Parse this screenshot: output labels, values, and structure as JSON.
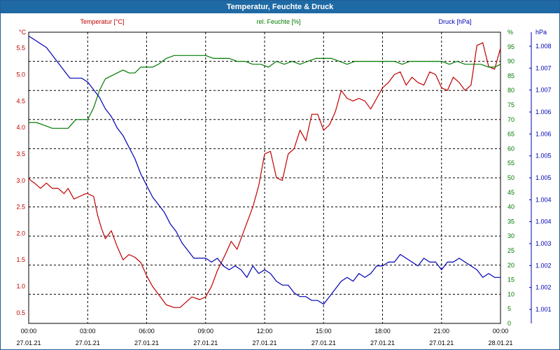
{
  "window": {
    "title": "Temperatur, Feuchte & Druck"
  },
  "colors": {
    "temperature": "#c00000",
    "humidity": "#007a00",
    "pressure": "#0000b4",
    "titlebar": "#1f6aa5"
  },
  "chart_data": {
    "type": "line",
    "title": "Temperatur, Feuchte & Druck",
    "grid": true,
    "x_ticks": [
      {
        "time": "00:00",
        "date": "27.01.21"
      },
      {
        "time": "03:00",
        "date": "27.01.21"
      },
      {
        "time": "06:00",
        "date": "27.01.21"
      },
      {
        "time": "09:00",
        "date": "27.01.21"
      },
      {
        "time": "12:00",
        "date": "27.01.21"
      },
      {
        "time": "15:00",
        "date": "27.01.21"
      },
      {
        "time": "18:00",
        "date": "27.01.21"
      },
      {
        "time": "21:00",
        "date": "27.01.21"
      },
      {
        "time": "00:00",
        "date": "28.01.21"
      }
    ],
    "xlim_hours": [
      0,
      24
    ],
    "axes": {
      "temperature": {
        "unit": "°C",
        "label": "Temperatur [°C]",
        "ylim": [
          0.3,
          5.8
        ],
        "ticks": [
          "0.5",
          "1.0",
          "1.5",
          "2.0",
          "2.5",
          "3.0",
          "3.5",
          "4.0",
          "4.5",
          "5.0",
          "5.5"
        ]
      },
      "humidity": {
        "unit": "%",
        "label": "rel. Feuchte [%]",
        "ylim": [
          0,
          100
        ],
        "ticks": [
          "0",
          "5",
          "10",
          "15",
          "20",
          "25",
          "30",
          "35",
          "40",
          "45",
          "50",
          "55",
          "60",
          "65",
          "70",
          "75",
          "80",
          "85",
          "90",
          "95",
          "%"
        ]
      },
      "pressure": {
        "unit": "hPa",
        "label": "Druck [hPa]",
        "ylim": [
          1000.6,
          1008.2
        ],
        "ticks": [
          "1.001",
          "1.002",
          "1.002",
          "1.003",
          "1.004",
          "1.004",
          "1.005",
          "1.005",
          "1.006",
          "1.006",
          "1.007",
          "1.007",
          "1.008"
        ]
      }
    },
    "series": [
      {
        "name": "Temperatur [°C]",
        "axis": "temperature",
        "x": [
          0,
          0.1,
          0.3,
          0.6,
          0.9,
          1.2,
          1.5,
          1.8,
          2.0,
          2.3,
          2.6,
          2.9,
          3.0,
          3.3,
          3.5,
          3.7,
          3.9,
          4.2,
          4.5,
          4.8,
          5.1,
          5.4,
          5.7,
          6.0,
          6.3,
          6.6,
          7.0,
          7.4,
          7.7,
          8.0,
          8.3,
          8.7,
          9.0,
          9.3,
          9.6,
          10.0,
          10.3,
          10.6,
          11.0,
          11.4,
          11.7,
          12.0,
          12.3,
          12.6,
          12.9,
          13.2,
          13.5,
          13.8,
          14.1,
          14.4,
          14.7,
          15.0,
          15.3,
          15.6,
          15.9,
          16.2,
          16.5,
          16.8,
          17.1,
          17.4,
          17.7,
          18.0,
          18.3,
          18.6,
          18.9,
          19.2,
          19.5,
          19.8,
          20.1,
          20.4,
          20.7,
          21.0,
          21.3,
          21.6,
          21.9,
          22.2,
          22.5,
          22.8,
          23.1,
          23.4,
          23.7,
          24.0
        ],
        "y": [
          3.05,
          3.0,
          2.95,
          2.85,
          2.95,
          2.85,
          2.85,
          2.75,
          2.85,
          2.65,
          2.7,
          2.75,
          2.75,
          2.7,
          2.35,
          2.1,
          1.9,
          2.05,
          1.75,
          1.5,
          1.6,
          1.55,
          1.45,
          1.2,
          1.0,
          0.85,
          0.65,
          0.6,
          0.6,
          0.7,
          0.8,
          0.75,
          0.8,
          1.0,
          1.3,
          1.6,
          1.85,
          1.7,
          2.1,
          2.5,
          2.9,
          3.5,
          3.55,
          3.05,
          3.0,
          3.5,
          3.6,
          3.95,
          3.75,
          4.25,
          4.25,
          3.95,
          4.05,
          4.3,
          4.7,
          4.55,
          4.5,
          4.55,
          4.5,
          4.35,
          4.55,
          4.75,
          4.85,
          5.0,
          5.05,
          4.8,
          4.95,
          4.85,
          4.8,
          5.05,
          5.0,
          4.75,
          4.7,
          4.95,
          4.85,
          4.7,
          4.8,
          5.55,
          5.6,
          5.15,
          5.1,
          5.5
        ]
      },
      {
        "name": "rel. Feuchte [%]",
        "axis": "humidity",
        "x": [
          0,
          0.4,
          0.8,
          1.2,
          1.6,
          2.0,
          2.4,
          2.7,
          3.0,
          3.3,
          3.6,
          3.9,
          4.2,
          4.5,
          4.8,
          5.1,
          5.4,
          5.7,
          6.0,
          6.3,
          6.6,
          7.0,
          7.4,
          7.8,
          8.2,
          8.6,
          9.0,
          9.4,
          9.8,
          10.2,
          10.6,
          11.0,
          11.4,
          11.8,
          12.2,
          12.6,
          13.0,
          13.4,
          13.8,
          14.2,
          14.6,
          15.0,
          15.4,
          15.8,
          16.2,
          16.6,
          17.0,
          17.4,
          17.8,
          18.2,
          18.6,
          19.0,
          19.4,
          19.8,
          20.2,
          20.6,
          21.0,
          21.4,
          21.8,
          22.2,
          22.6,
          23.0,
          23.4,
          23.7,
          24.0
        ],
        "y": [
          69,
          69,
          68,
          67,
          67,
          67,
          70,
          70,
          70,
          74,
          80,
          84,
          85,
          86,
          87,
          86,
          86,
          88,
          88,
          88,
          89,
          91,
          92,
          92,
          92,
          92,
          92,
          91,
          91,
          91,
          90,
          90,
          89,
          89,
          88,
          90,
          89,
          90,
          89,
          90,
          91,
          91,
          91,
          90,
          89,
          90,
          90,
          90,
          90,
          90,
          90,
          89,
          90,
          90,
          90,
          90,
          90,
          89,
          90,
          89,
          89,
          89,
          88,
          88,
          89
        ]
      },
      {
        "name": "Druck [hPa]",
        "axis": "pressure",
        "x": [
          0,
          0.3,
          0.6,
          0.9,
          1.2,
          1.5,
          1.8,
          2.1,
          2.4,
          2.7,
          3.0,
          3.3,
          3.6,
          3.9,
          4.2,
          4.5,
          4.8,
          5.1,
          5.4,
          5.7,
          6.0,
          6.3,
          6.6,
          6.9,
          7.2,
          7.5,
          7.8,
          8.1,
          8.4,
          8.7,
          9.0,
          9.3,
          9.6,
          9.9,
          10.2,
          10.5,
          10.8,
          11.1,
          11.4,
          11.7,
          12.0,
          12.3,
          12.6,
          12.9,
          13.2,
          13.5,
          13.8,
          14.1,
          14.4,
          14.7,
          15.0,
          15.3,
          15.6,
          15.9,
          16.2,
          16.5,
          16.8,
          17.1,
          17.4,
          17.7,
          18.0,
          18.3,
          18.6,
          18.9,
          19.2,
          19.5,
          19.8,
          20.1,
          20.4,
          20.7,
          21.0,
          21.3,
          21.6,
          21.9,
          22.2,
          22.5,
          22.8,
          23.1,
          23.4,
          23.7,
          24.0
        ],
        "y": [
          1008.1,
          1008.0,
          1007.9,
          1007.8,
          1007.6,
          1007.4,
          1007.2,
          1007.0,
          1007.0,
          1007.0,
          1006.9,
          1006.7,
          1006.5,
          1006.2,
          1006.0,
          1005.7,
          1005.5,
          1005.2,
          1004.9,
          1004.5,
          1004.2,
          1003.9,
          1003.7,
          1003.5,
          1003.2,
          1003.0,
          1002.7,
          1002.5,
          1002.3,
          1002.3,
          1002.3,
          1002.2,
          1002.3,
          1002.1,
          1002.0,
          1002.1,
          1002.0,
          1001.8,
          1002.1,
          1001.9,
          1002.0,
          1001.9,
          1001.7,
          1001.6,
          1001.6,
          1001.4,
          1001.3,
          1001.3,
          1001.2,
          1001.2,
          1001.1,
          1001.3,
          1001.5,
          1001.7,
          1001.8,
          1001.7,
          1001.9,
          1001.8,
          1001.9,
          1002.1,
          1002.1,
          1002.2,
          1002.2,
          1002.4,
          1002.3,
          1002.2,
          1002.1,
          1002.3,
          1002.2,
          1002.2,
          1002.0,
          1002.2,
          1002.2,
          1002.3,
          1002.2,
          1002.1,
          1002.0,
          1001.8,
          1001.9,
          1001.8,
          1001.8
        ]
      }
    ]
  }
}
